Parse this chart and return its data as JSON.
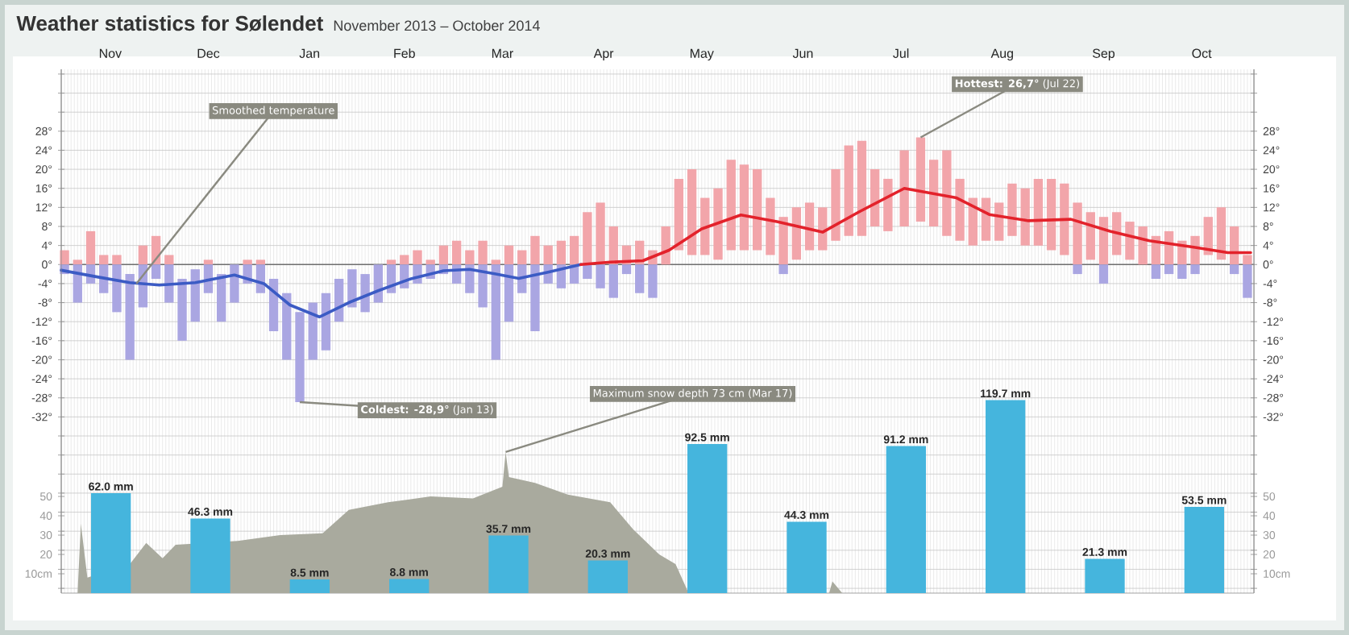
{
  "chart_data": [
    {
      "type": "bar",
      "title": "Weather statistics for Sølendet",
      "subtitle": "November 2013 – October 2014",
      "x": [
        "2013-11-02",
        "2013-11-06",
        "2013-11-10",
        "2013-11-14",
        "2013-11-18",
        "2013-11-22",
        "2013-11-26",
        "2013-11-30",
        "2013-12-04",
        "2013-12-08",
        "2013-12-12",
        "2013-12-16",
        "2013-12-20",
        "2013-12-24",
        "2013-12-28",
        "2014-01-01",
        "2014-01-05",
        "2014-01-09",
        "2014-01-13",
        "2014-01-17",
        "2014-01-21",
        "2014-01-25",
        "2014-01-29",
        "2014-02-02",
        "2014-02-06",
        "2014-02-10",
        "2014-02-14",
        "2014-02-18",
        "2014-02-22",
        "2014-02-26",
        "2014-03-02",
        "2014-03-06",
        "2014-03-10",
        "2014-03-14",
        "2014-03-18",
        "2014-03-22",
        "2014-03-26",
        "2014-03-30",
        "2014-04-03",
        "2014-04-07",
        "2014-04-11",
        "2014-04-15",
        "2014-04-19",
        "2014-04-23",
        "2014-04-27",
        "2014-05-01",
        "2014-05-05",
        "2014-05-09",
        "2014-05-13",
        "2014-05-17",
        "2014-05-21",
        "2014-05-25",
        "2014-05-29",
        "2014-06-02",
        "2014-06-06",
        "2014-06-10",
        "2014-06-14",
        "2014-06-18",
        "2014-06-22",
        "2014-06-26",
        "2014-06-30",
        "2014-07-04",
        "2014-07-08",
        "2014-07-12",
        "2014-07-17",
        "2014-07-22",
        "2014-07-26",
        "2014-07-30",
        "2014-08-03",
        "2014-08-07",
        "2014-08-11",
        "2014-08-15",
        "2014-08-19",
        "2014-08-23",
        "2014-08-27",
        "2014-08-31",
        "2014-09-04",
        "2014-09-08",
        "2014-09-12",
        "2014-09-16",
        "2014-09-20",
        "2014-09-24",
        "2014-09-28",
        "2014-10-02",
        "2014-10-06",
        "2014-10-10",
        "2014-10-14",
        "2014-10-18",
        "2014-10-22",
        "2014-10-26",
        "2014-10-30"
      ],
      "series": [
        {
          "color": "#f2a5aa",
          "base": [
            0,
            0,
            0,
            0,
            0,
            null,
            0,
            0,
            0,
            null,
            null,
            0,
            null,
            null,
            0,
            0,
            null,
            null,
            null,
            null,
            null,
            null,
            null,
            null,
            null,
            0,
            0,
            0,
            0,
            0,
            0,
            0,
            0,
            0,
            0,
            0,
            0,
            0,
            0,
            0,
            0,
            0,
            0,
            0,
            0,
            0,
            0,
            3,
            2,
            2,
            1,
            3,
            3,
            3,
            2,
            0,
            1,
            3,
            3,
            5,
            6,
            6,
            8,
            7,
            8,
            9,
            8,
            6,
            5,
            4,
            5,
            5,
            6,
            4,
            4,
            3,
            2,
            0,
            1,
            0,
            2,
            1,
            0,
            0,
            0,
            0,
            0,
            2,
            1,
            0,
            0
          ],
          "values": [
            3,
            1,
            7,
            2,
            2,
            null,
            4,
            6,
            2,
            null,
            null,
            1,
            null,
            null,
            1,
            1,
            null,
            null,
            null,
            null,
            null,
            null,
            null,
            null,
            null,
            1,
            2,
            3,
            1,
            4,
            5,
            3,
            5,
            1,
            4,
            3,
            6,
            4,
            5,
            6,
            11,
            13,
            8,
            4,
            5,
            3,
            8,
            15,
            18,
            12,
            15,
            19,
            18,
            17,
            12,
            10,
            11,
            10,
            9,
            15,
            19,
            20,
            12,
            11,
            16,
            17.7,
            14,
            18,
            13,
            10,
            9,
            8,
            11,
            12,
            14,
            15,
            15,
            13,
            10,
            10,
            9,
            8,
            8,
            6,
            7,
            5,
            6,
            8,
            11,
            8,
            2
          ]
        },
        {
          "color": "#aaa6e2",
          "base": [
            0,
            0,
            0,
            0,
            0,
            -2,
            0,
            0,
            0,
            -3,
            -1,
            0,
            -2,
            0,
            0,
            0,
            -3,
            -6,
            -10,
            -8,
            -6,
            -3,
            -1,
            -2,
            0,
            0,
            0,
            0,
            0,
            0,
            0,
            0,
            0,
            0,
            0,
            0,
            0,
            0,
            0,
            0,
            0,
            0,
            0,
            0,
            0,
            0,
            null,
            null,
            null,
            null,
            null,
            null,
            null,
            null,
            null,
            0,
            null,
            null,
            null,
            null,
            null,
            null,
            null,
            null,
            null,
            null,
            null,
            null,
            null,
            null,
            null,
            null,
            null,
            null,
            null,
            null,
            null,
            0,
            null,
            0,
            null,
            null,
            null,
            0,
            0,
            0,
            0,
            null,
            null,
            0,
            0
          ],
          "values": [
            -2,
            -8,
            -4,
            -6,
            -10,
            -18,
            -9,
            -3,
            -8,
            -13,
            -11,
            -6,
            -10,
            -8,
            -4,
            -6,
            -11,
            -14,
            -18.9,
            -12,
            -12,
            -9,
            -8,
            -8,
            -8,
            -6,
            -5,
            -4,
            -3,
            -2,
            -4,
            -6,
            -9,
            -20,
            -12,
            -6,
            -14,
            -4,
            -5,
            -4,
            -3,
            -5,
            -7,
            -2,
            -6,
            -7,
            null,
            null,
            null,
            null,
            null,
            null,
            null,
            null,
            null,
            -2,
            null,
            null,
            null,
            null,
            null,
            null,
            null,
            null,
            null,
            null,
            null,
            null,
            null,
            null,
            null,
            null,
            null,
            null,
            null,
            null,
            null,
            -2,
            null,
            -4,
            null,
            null,
            null,
            -3,
            -2,
            -3,
            -2,
            null,
            null,
            -2,
            -7
          ]
        },
        {
          "type": "line",
          "color": "#3b5bc4",
          "x": [
            "2013-11-01",
            "2013-11-12",
            "2013-11-22",
            "2013-12-01",
            "2013-12-12",
            "2013-12-24",
            "2014-01-02",
            "2014-01-10",
            "2014-01-19",
            "2014-01-28",
            "2014-02-06",
            "2014-02-16",
            "2014-02-26",
            "2014-03-06",
            "2014-03-14",
            "2014-03-21",
            "2014-03-30",
            "2014-04-09"
          ],
          "values": [
            -1.2,
            -2.6,
            -3.8,
            -4.3,
            -3.8,
            -2.2,
            -4,
            -8.5,
            -11,
            -8,
            -5.5,
            -3,
            -1.3,
            -1,
            -2,
            -2.9,
            -1.6,
            0
          ]
        },
        {
          "type": "line",
          "color": "#e3222b",
          "x": [
            "2014-04-09",
            "2014-04-18",
            "2014-04-28",
            "2014-05-06",
            "2014-05-16",
            "2014-05-28",
            "2014-06-08",
            "2014-06-22",
            "2014-07-03",
            "2014-07-17",
            "2014-08-02",
            "2014-08-12",
            "2014-08-24",
            "2014-09-06",
            "2014-09-18",
            "2014-09-30",
            "2014-10-14",
            "2014-10-24",
            "2014-10-31"
          ],
          "values": [
            0,
            0.5,
            0.8,
            3,
            7.5,
            10.4,
            9,
            6.8,
            11,
            16,
            14,
            10.5,
            9.2,
            9.5,
            7,
            5,
            3.6,
            2.5,
            2.5
          ]
        }
      ],
      "xlim": [
        "2013-11-01",
        "2014-11-01"
      ],
      "xticks": [
        {
          "value": "2013-11-16",
          "label": "Nov"
        },
        {
          "value": "2013-12-16",
          "label": "Dec"
        },
        {
          "value": "2014-01-16",
          "label": "Jan"
        },
        {
          "value": "2014-02-14",
          "label": "Feb"
        },
        {
          "value": "2014-03-16",
          "label": "Mar"
        },
        {
          "value": "2014-04-16",
          "label": "Apr"
        },
        {
          "value": "2014-05-16",
          "label": "May"
        },
        {
          "value": "2014-06-16",
          "label": "Jun"
        },
        {
          "value": "2014-07-16",
          "label": "Jul"
        },
        {
          "value": "2014-08-16",
          "label": "Aug"
        },
        {
          "value": "2014-09-16",
          "label": "Sep"
        },
        {
          "value": "2014-10-16",
          "label": "Oct"
        }
      ],
      "ylim": [
        -69,
        41
      ],
      "yticks": [
        {
          "value": -68,
          "label": null
        },
        {
          "value": -64,
          "label": null
        },
        {
          "value": -60,
          "label": null
        },
        {
          "value": -56,
          "label": null
        },
        {
          "value": -52,
          "label": null
        },
        {
          "value": -48,
          "label": null
        },
        {
          "value": -44,
          "label": null
        },
        {
          "value": -40,
          "label": null
        },
        {
          "value": -36,
          "label": null
        },
        {
          "value": -32,
          "label": "-32°"
        },
        {
          "value": -28,
          "label": "-28°"
        },
        {
          "value": -24,
          "label": "-24°"
        },
        {
          "value": -20,
          "label": "-20°"
        },
        {
          "value": -16,
          "label": "-16°"
        },
        {
          "value": -12,
          "label": "-12°"
        },
        {
          "value": -8,
          "label": "-8°"
        },
        {
          "value": -4,
          "label": "-4°"
        },
        {
          "value": 0,
          "label": "0°"
        },
        {
          "value": 4,
          "label": "4°"
        },
        {
          "value": 8,
          "label": "8°"
        },
        {
          "value": 12,
          "label": "12°"
        },
        {
          "value": 16,
          "label": "16°"
        },
        {
          "value": 20,
          "label": "20°"
        },
        {
          "value": 24,
          "label": "24°"
        },
        {
          "value": 28,
          "label": "28°"
        },
        {
          "value": 32,
          "label": null
        },
        {
          "value": 36,
          "label": null
        },
        {
          "value": 40,
          "label": null
        }
      ],
      "y2lim": [
        -69,
        41
      ],
      "y2ticks": [
        {
          "value": -68,
          "label": null
        },
        {
          "value": -64,
          "label": null
        },
        {
          "value": -60,
          "label": null
        },
        {
          "value": -56,
          "label": null
        },
        {
          "value": -52,
          "label": null
        },
        {
          "value": -48,
          "label": null
        },
        {
          "value": -44,
          "label": null
        },
        {
          "value": -40,
          "label": null
        },
        {
          "value": -36,
          "label": null
        },
        {
          "value": -32,
          "label": "-32°"
        },
        {
          "value": -28,
          "label": "-28°"
        },
        {
          "value": -24,
          "label": "-24°"
        },
        {
          "value": -20,
          "label": "-20°"
        },
        {
          "value": -16,
          "label": "-16°"
        },
        {
          "value": -12,
          "label": "-12°"
        },
        {
          "value": -8,
          "label": "-8°"
        },
        {
          "value": -4,
          "label": "-4°"
        },
        {
          "value": 0,
          "label": "0°"
        },
        {
          "value": 4,
          "label": "4°"
        },
        {
          "value": 8,
          "label": "8°"
        },
        {
          "value": 12,
          "label": "12°"
        },
        {
          "value": 16,
          "label": "16°"
        },
        {
          "value": 20,
          "label": "20°"
        },
        {
          "value": 24,
          "label": "24°"
        },
        {
          "value": 28,
          "label": "28°"
        },
        {
          "value": 32,
          "label": null
        },
        {
          "value": 36,
          "label": null
        },
        {
          "value": 40,
          "label": null
        }
      ],
      "grid": true,
      "ref_lines": [
        {
          "axis": "y",
          "value": 0,
          "color": "#707070"
        }
      ],
      "annotations": [
        {
          "text": "Smoothed temperature",
          "x": "2013-11-24",
          "y": -4
        },
        {
          "text": "**Hottest: 26,7°** (Jul 22)",
          "x": "2014-07-22",
          "y": 26.7
        },
        {
          "text": "**Coldest: -28,9°** (Jan 13)",
          "x": "2014-01-13",
          "y": -28.9
        }
      ]
    },
    {
      "type": "bar",
      "categories": [
        null,
        null,
        null,
        null,
        null,
        null,
        null,
        null,
        null,
        null,
        null,
        null
      ],
      "values": [
        62.0,
        46.3,
        8.5,
        8.8,
        35.7,
        20.3,
        92.5,
        44.3,
        91.2,
        119.7,
        21.3,
        53.5
      ],
      "color": "#45b5dd",
      "value_labels": [
        "62.0 mm",
        "46.3 mm",
        "8.5 mm",
        "8.8 mm",
        "35.7 mm",
        "20.3 mm",
        "92.5 mm",
        "44.3 mm",
        "91.2 mm",
        "119.7 mm",
        "21.3 mm",
        "53.5 mm"
      ],
      "ylim": [
        0,
        325
      ],
      "tick_labels": false
    },
    {
      "type": "area",
      "x": [
        "2013-11-06",
        "2013-11-07",
        "2013-11-09",
        "2013-11-22",
        "2013-11-27",
        "2013-12-02",
        "2013-12-06",
        "2013-12-25",
        "2014-01-07",
        "2014-01-20",
        "2014-01-28",
        "2014-02-09",
        "2014-02-22",
        "2014-03-07",
        "2014-03-16",
        "2014-03-17",
        "2014-03-18",
        "2014-03-26",
        "2014-04-05",
        "2014-04-18",
        "2014-04-25",
        "2014-05-03",
        "2014-05-08",
        "2014-05-12",
        "2014-06-24",
        "2014-06-25",
        "2014-06-28"
      ],
      "values": [
        0,
        36,
        8,
        15,
        26,
        18,
        25,
        27,
        30,
        31,
        43,
        47,
        50,
        49,
        55,
        73,
        60,
        57,
        51,
        47,
        33,
        20,
        15,
        0,
        0,
        6,
        0
      ],
      "color": "#a9aa9e",
      "xlim": [
        "2013-11-01",
        "2014-11-01"
      ],
      "ylim": [
        0,
        271
      ],
      "yticks": [
        {
          "value": 10,
          "label": "10cm"
        },
        20,
        30,
        40,
        50
      ],
      "y2lim": [
        0,
        271
      ],
      "y2ticks": [
        {
          "value": 10,
          "label": "10cm"
        },
        20,
        30,
        40,
        50
      ],
      "tick_labels": "y",
      "annotations": [
        {
          "text": "Maximum snow depth 73 cm (Mar 17)",
          "x": "2014-03-17",
          "y": 73
        }
      ]
    }
  ]
}
